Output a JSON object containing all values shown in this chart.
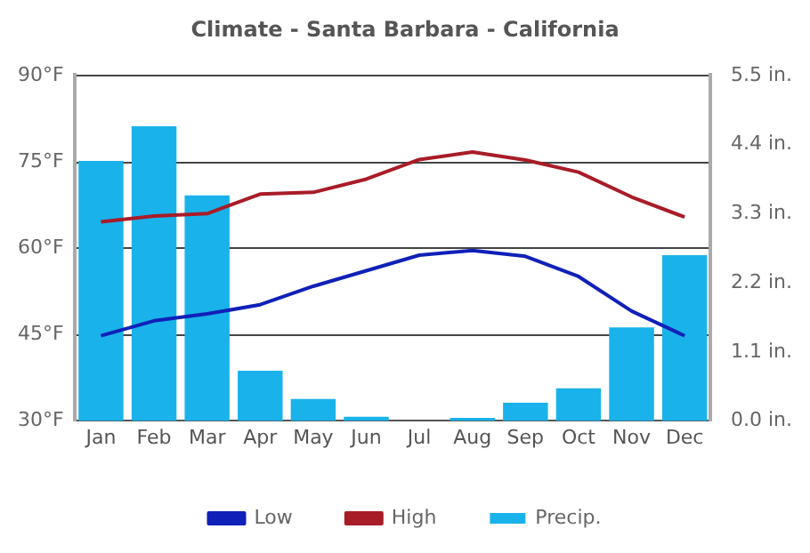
{
  "chart_data": {
    "type": "bar",
    "title": "Climate - Santa Barbara - California",
    "categories": [
      "Jan",
      "Feb",
      "Mar",
      "Apr",
      "May",
      "Jun",
      "Jul",
      "Aug",
      "Sep",
      "Oct",
      "Nov",
      "Dec"
    ],
    "series": [
      {
        "name": "Low",
        "type": "line",
        "color": "#1020b8",
        "values": [
          44.8,
          47.4,
          48.6,
          50.2,
          53.4,
          56.1,
          58.8,
          59.6,
          58.6,
          55.1,
          49.1,
          44.8
        ]
      },
      {
        "name": "High",
        "type": "line",
        "color": "#a81c28",
        "values": [
          64.6,
          65.6,
          66.0,
          69.4,
          69.7,
          72.0,
          75.4,
          76.7,
          75.3,
          73.2,
          68.9,
          65.4
        ]
      },
      {
        "name": "Precip.",
        "axis": "y2",
        "color": "#1ab2ea",
        "values": [
          4.14,
          4.69,
          3.59,
          0.8,
          0.35,
          0.07,
          0,
          0.05,
          0.29,
          0.52,
          1.49,
          2.64
        ]
      }
    ],
    "ylim": [
      30,
      90
    ],
    "yticks": [
      {
        "value": 30,
        "label": "30°F"
      },
      {
        "value": 45,
        "label": "45°F"
      },
      {
        "value": 60,
        "label": "60°F"
      },
      {
        "value": 75,
        "label": "75°F"
      },
      {
        "value": 90,
        "label": "90°F"
      }
    ],
    "y2lim": [
      0,
      5.5
    ],
    "y2ticks": [
      {
        "value": 0,
        "label": "0.0 in."
      },
      {
        "value": 1.1,
        "label": "1.1 in."
      },
      {
        "value": 2.2,
        "label": "2.2 in."
      },
      {
        "value": 3.3,
        "label": "3.3 in."
      },
      {
        "value": 4.4,
        "label": "4.4 in."
      },
      {
        "value": 5.5,
        "label": "5.5 in."
      }
    ],
    "grid": "y",
    "legend": "bottom",
    "marker": "none"
  }
}
